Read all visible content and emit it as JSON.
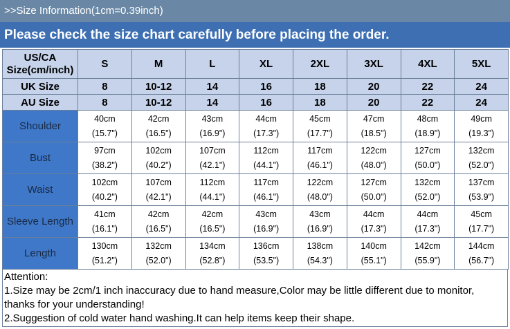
{
  "header": {
    "info": ">>Size Information(1cm=0.39inch)",
    "notice": "Please check the size chart carefully before placing the order."
  },
  "table": {
    "us_label_line1": "US/CA",
    "us_label_line2": "Size(cm/inch)",
    "us_sizes": [
      "S",
      "M",
      "L",
      "XL",
      "2XL",
      "3XL",
      "4XL",
      "5XL"
    ],
    "uk_label": "UK Size",
    "uk_sizes": [
      "8",
      "10-12",
      "14",
      "16",
      "18",
      "20",
      "22",
      "24"
    ],
    "au_label": "AU Size",
    "au_sizes": [
      "8",
      "10-12",
      "14",
      "16",
      "18",
      "20",
      "22",
      "24"
    ],
    "rows": [
      {
        "label": "Shoulder",
        "cells": [
          {
            "cm": "40cm",
            "inch": "(15.7\")"
          },
          {
            "cm": "42cm",
            "inch": "(16.5\")"
          },
          {
            "cm": "43cm",
            "inch": "(16.9\")"
          },
          {
            "cm": "44cm",
            "inch": "(17.3\")"
          },
          {
            "cm": "45cm",
            "inch": "(17.7\")"
          },
          {
            "cm": "47cm",
            "inch": "(18.5\")"
          },
          {
            "cm": "48cm",
            "inch": "(18.9\")"
          },
          {
            "cm": "49cm",
            "inch": "(19.3\")"
          }
        ]
      },
      {
        "label": "Bust",
        "cells": [
          {
            "cm": "97cm",
            "inch": "(38.2\")"
          },
          {
            "cm": "102cm",
            "inch": "(40.2\")"
          },
          {
            "cm": "107cm",
            "inch": "(42.1\")"
          },
          {
            "cm": "112cm",
            "inch": "(44.1\")"
          },
          {
            "cm": "117cm",
            "inch": "(46.1\")"
          },
          {
            "cm": "122cm",
            "inch": "(48.0\")"
          },
          {
            "cm": "127cm",
            "inch": "(50.0\")"
          },
          {
            "cm": "132cm",
            "inch": "(52.0\")"
          }
        ]
      },
      {
        "label": "Waist",
        "cells": [
          {
            "cm": "102cm",
            "inch": "(40.2\")"
          },
          {
            "cm": "107cm",
            "inch": "(42.1\")"
          },
          {
            "cm": "112cm",
            "inch": "(44.1\")"
          },
          {
            "cm": "117cm",
            "inch": "(46.1\")"
          },
          {
            "cm": "122cm",
            "inch": "(48.0\")"
          },
          {
            "cm": "127cm",
            "inch": "(50.0\")"
          },
          {
            "cm": "132cm",
            "inch": "(52.0\")"
          },
          {
            "cm": "137cm",
            "inch": "(53.9\")"
          }
        ]
      },
      {
        "label": "Sleeve Length",
        "cells": [
          {
            "cm": "41cm",
            "inch": "(16.1\")"
          },
          {
            "cm": "42cm",
            "inch": "(16.5\")"
          },
          {
            "cm": "42cm",
            "inch": "(16.5\")"
          },
          {
            "cm": "43cm",
            "inch": "(16.9\")"
          },
          {
            "cm": "43cm",
            "inch": "(16.9\")"
          },
          {
            "cm": "44cm",
            "inch": "(17.3\")"
          },
          {
            "cm": "44cm",
            "inch": "(17.3\")"
          },
          {
            "cm": "45cm",
            "inch": "(17.7\")"
          }
        ]
      },
      {
        "label": "Length",
        "cells": [
          {
            "cm": "130cm",
            "inch": "(51.2\")"
          },
          {
            "cm": "132cm",
            "inch": "(52.0\")"
          },
          {
            "cm": "134cm",
            "inch": "(52.8\")"
          },
          {
            "cm": "136cm",
            "inch": "(53.5\")"
          },
          {
            "cm": "138cm",
            "inch": "(54.3\")"
          },
          {
            "cm": "140cm",
            "inch": "(55.1\")"
          },
          {
            "cm": "142cm",
            "inch": "(55.9\")"
          },
          {
            "cm": "144cm",
            "inch": "(56.7\")"
          }
        ]
      }
    ]
  },
  "attention": {
    "title": "Attention:",
    "line1": "1.Size may be 2cm/1 inch inaccuracy due to hand measure,Color may be little different due to monitor,",
    "line2": "thanks for your understanding!",
    "line3": "2.Suggestion of cold water hand washing.It can help items keep their shape."
  },
  "colors": {
    "header_small_bg": "#6a88a6",
    "header_big_bg": "#3d6fb2",
    "size_row_bg": "#c6d3ea",
    "measure_label_bg": "#3f78c8",
    "border": "#6a7f99"
  }
}
